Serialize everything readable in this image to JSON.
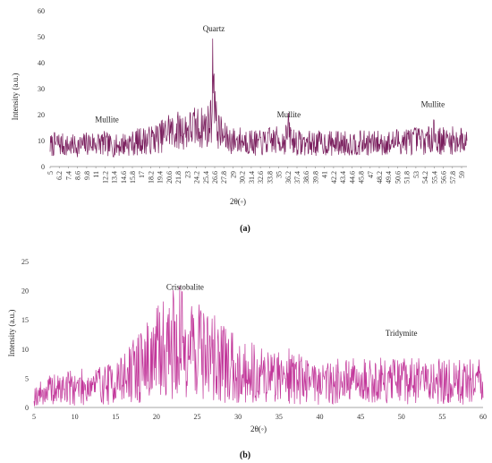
{
  "chart_data": [
    {
      "type": "line",
      "panel_label": "(a)",
      "xlabel": "2θ(◦)",
      "ylabel": "Intensity (a.u.)",
      "ylim": [
        0,
        60
      ],
      "yticks": [
        0,
        10,
        20,
        30,
        40,
        50,
        60
      ],
      "xlim": [
        5,
        60
      ],
      "xtick_labels": [
        "5",
        "6.2",
        "7.4",
        "8.6",
        "9.8",
        "11",
        "12.2",
        "13.4",
        "14.6",
        "15.8",
        "17",
        "18.2",
        "19.4",
        "20.6",
        "21.8",
        "23",
        "24.2",
        "25.4",
        "26.6",
        "27.8",
        "29",
        "30.2",
        "31.4",
        "32.6",
        "33.8",
        "35",
        "36.2",
        "37.4",
        "38.6",
        "39.8",
        "41",
        "42.2",
        "43.4",
        "44.6",
        "45.8",
        "47",
        "48.2",
        "49.4",
        "50.6",
        "51.8",
        "53",
        "54.2",
        "55.4",
        "56.6",
        "57.8",
        "59"
      ],
      "grid": false,
      "line_color": "#7a1f5e",
      "annotations": [
        {
          "text": "Mullite",
          "x": 12.5,
          "y": 17
        },
        {
          "text": "Quartz",
          "x": 26.6,
          "y": 52
        },
        {
          "text": "Mullite",
          "x": 36.5,
          "y": 19
        },
        {
          "text": "Mullite",
          "x": 55.5,
          "y": 23
        }
      ],
      "series": [
        {
          "x": [
            5,
            6,
            7,
            8,
            9,
            10,
            11,
            12,
            13,
            14,
            15,
            16,
            17,
            18,
            19,
            20,
            20.8,
            21,
            22,
            23,
            24,
            25,
            26,
            26.3,
            26.6,
            26.8,
            27,
            27.5,
            28,
            29,
            30,
            31,
            32,
            33,
            34,
            35,
            36,
            36.4,
            37,
            38,
            39,
            40,
            41,
            42,
            43,
            44,
            45,
            46,
            47,
            48,
            49,
            50,
            51,
            52,
            53,
            54,
            55,
            55.6,
            56,
            57,
            58,
            59,
            60
          ],
          "y": [
            8,
            9,
            8,
            8,
            8,
            9,
            9,
            9,
            8,
            8,
            9,
            9,
            10,
            10,
            11,
            12,
            15,
            13,
            14,
            14,
            15,
            15,
            16,
            20,
            46,
            20,
            15,
            13,
            11,
            10,
            10,
            10,
            9,
            9,
            10,
            10,
            10,
            14,
            10,
            9,
            9,
            9,
            9,
            9,
            9,
            9,
            9,
            9,
            9,
            9,
            9,
            9,
            10,
            10,
            10,
            10,
            10,
            14,
            10,
            10,
            10,
            10,
            10
          ]
        }
      ]
    },
    {
      "type": "line",
      "panel_label": "(b)",
      "xlabel": "2θ(◦)",
      "ylabel": "Intensity (a.u.)",
      "ylim": [
        0,
        25
      ],
      "yticks": [
        0,
        5,
        10,
        15,
        20,
        25
      ],
      "xlim": [
        5,
        60
      ],
      "xticks": [
        5,
        10,
        15,
        20,
        25,
        30,
        35,
        40,
        45,
        50,
        55,
        60
      ],
      "grid": false,
      "line_color": "#c2379a",
      "annotations": [
        {
          "text": "Cristobalite",
          "x": 23.5,
          "y": 20.2
        },
        {
          "text": "Tridymite",
          "x": 50,
          "y": 12.3
        }
      ],
      "series": [
        {
          "x": [
            5,
            6,
            7,
            8,
            9,
            10,
            11,
            12,
            13,
            14,
            15,
            16,
            17,
            18,
            19,
            20,
            21,
            22,
            23,
            24,
            25,
            26,
            27,
            28,
            29,
            30,
            31,
            32,
            33,
            34,
            35,
            36,
            37,
            38,
            39,
            40,
            41,
            42,
            43,
            44,
            45,
            46,
            47,
            48,
            49,
            50,
            51,
            52,
            53,
            54,
            55,
            56,
            57,
            58,
            59,
            60
          ],
          "y": [
            2,
            2.5,
            3,
            3,
            3.5,
            3.5,
            3.5,
            4,
            4,
            4,
            4.5,
            5,
            6,
            7,
            8,
            9,
            10.5,
            11,
            11,
            11,
            10.5,
            9.5,
            8.5,
            7.5,
            7,
            6.5,
            6,
            6,
            5.5,
            5.5,
            5.5,
            6,
            5,
            5,
            5,
            4.5,
            4.5,
            4.5,
            4.5,
            4.5,
            4.5,
            4.5,
            4.5,
            4.5,
            4.5,
            4.5,
            4.5,
            4.5,
            4.5,
            4.5,
            4.5,
            4.5,
            4.5,
            4.5,
            4.5,
            4.5
          ]
        }
      ]
    }
  ]
}
